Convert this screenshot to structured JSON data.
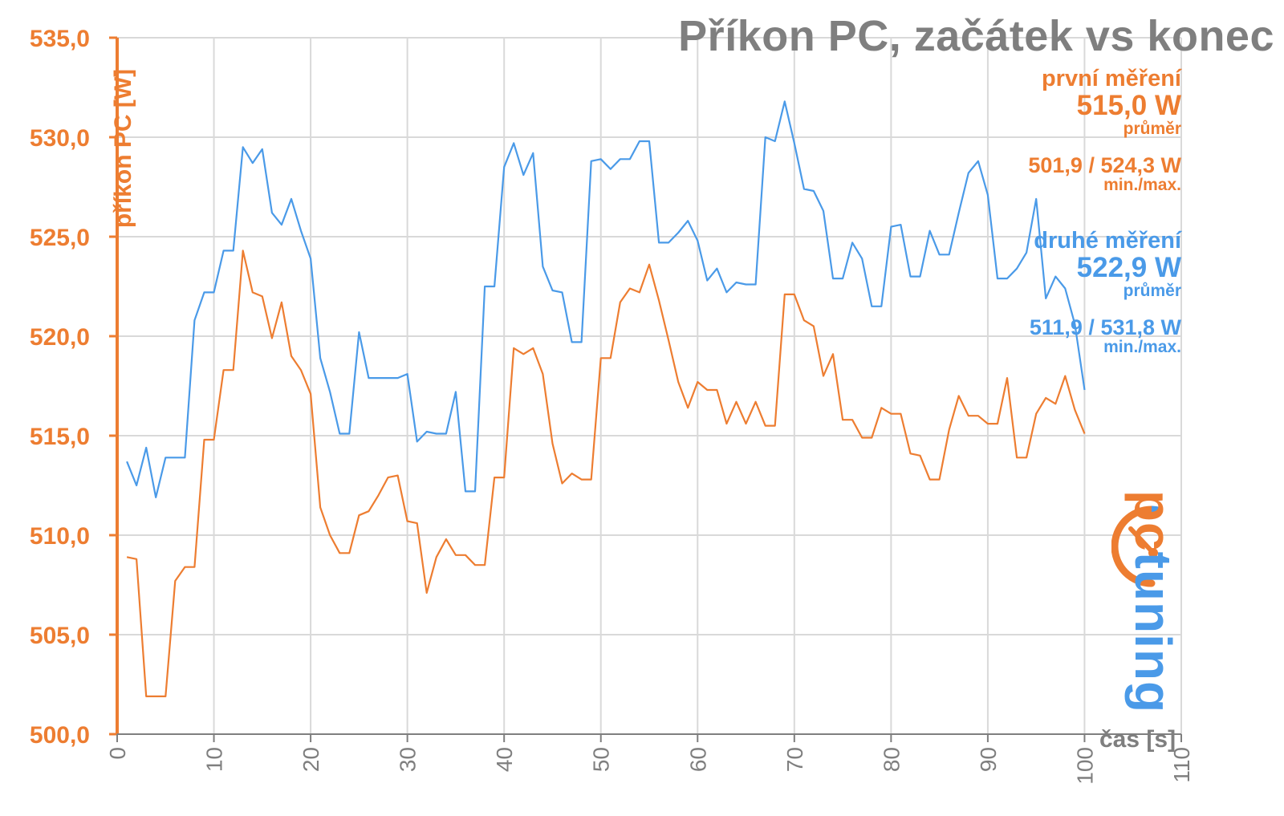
{
  "chart_data": {
    "type": "line",
    "title": "Příkon PC, začátek vs konec",
    "ylabel": "příkon PC [W]",
    "xlabel": "čas [s]",
    "xlim": [
      0,
      110
    ],
    "ylim": [
      500,
      535
    ],
    "x_ticks": [
      "0",
      "10",
      "20",
      "30",
      "40",
      "50",
      "60",
      "70",
      "80",
      "90",
      "100",
      "110"
    ],
    "y_ticks": [
      "500,0",
      "505,0",
      "510,0",
      "515,0",
      "520,0",
      "525,0",
      "530,0",
      "535,0"
    ],
    "grid": true,
    "colors": {
      "orange": "#ed7d31",
      "blue": "#4a9ae8",
      "grid": "#d9d9d9",
      "title": "#7f7f7f"
    },
    "legend": [
      {
        "name": "první měření",
        "avg": "515,0 W",
        "avg_label": "průměr",
        "minmax": "501,9 / 524,3 W",
        "minmax_label": "min./max.",
        "color": "#ed7d31"
      },
      {
        "name": "druhé měření",
        "avg": "522,9 W",
        "avg_label": "průměr",
        "minmax": "511,9 / 531,8 W",
        "minmax_label": "min./max.",
        "color": "#4a9ae8"
      }
    ],
    "series": [
      {
        "name": "první měření",
        "color": "#ed7d31",
        "values": [
          508.9,
          508.8,
          501.9,
          501.9,
          501.9,
          507.7,
          508.4,
          508.4,
          514.8,
          514.8,
          518.3,
          518.3,
          524.3,
          522.2,
          522.0,
          519.9,
          521.7,
          519.0,
          518.3,
          517.1,
          511.4,
          510.0,
          509.1,
          509.1,
          511.0,
          511.2,
          512.0,
          512.9,
          513.0,
          510.7,
          510.6,
          507.1,
          508.9,
          509.8,
          509.0,
          509.0,
          508.5,
          508.5,
          512.9,
          512.9,
          519.4,
          519.1,
          519.4,
          518.1,
          514.6,
          512.6,
          513.1,
          512.8,
          512.8,
          518.9,
          518.9,
          521.7,
          522.4,
          522.2,
          523.6,
          521.8,
          519.8,
          517.7,
          516.4,
          517.7,
          517.3,
          517.3,
          515.6,
          516.7,
          515.6,
          516.7,
          515.5,
          515.5,
          522.1,
          522.1,
          520.8,
          520.5,
          518.0,
          519.1,
          515.8,
          515.8,
          514.9,
          514.9,
          516.4,
          516.1,
          516.1,
          514.1,
          514.0,
          512.8,
          512.8,
          515.3,
          517.0,
          516.0,
          516.0,
          515.6,
          515.6,
          517.9,
          513.9,
          513.9,
          516.1,
          516.9,
          516.6,
          518.0,
          516.3,
          515.1
        ]
      },
      {
        "name": "druhé měření",
        "color": "#4a9ae8",
        "values": [
          513.7,
          512.5,
          514.4,
          511.9,
          513.9,
          513.9,
          513.9,
          520.8,
          522.2,
          522.2,
          524.3,
          524.3,
          529.5,
          528.7,
          529.4,
          526.2,
          525.6,
          526.9,
          525.3,
          523.9,
          518.9,
          517.2,
          515.1,
          515.1,
          520.2,
          517.9,
          517.9,
          517.9,
          517.9,
          518.1,
          514.7,
          515.2,
          515.1,
          515.1,
          517.2,
          512.2,
          512.2,
          522.5,
          522.5,
          528.5,
          529.7,
          528.1,
          529.2,
          523.5,
          522.3,
          522.2,
          519.7,
          519.7,
          528.8,
          528.9,
          528.4,
          528.9,
          528.9,
          529.8,
          529.8,
          524.7,
          524.7,
          525.2,
          525.8,
          524.8,
          522.8,
          523.4,
          522.2,
          522.7,
          522.6,
          522.6,
          530.0,
          529.8,
          531.8,
          529.7,
          527.4,
          527.3,
          526.3,
          522.9,
          522.9,
          524.7,
          523.9,
          521.5,
          521.5,
          525.5,
          525.6,
          523.0,
          523.0,
          525.3,
          524.1,
          524.1,
          526.2,
          528.2,
          528.8,
          527.1,
          522.9,
          522.9,
          523.4,
          524.2,
          526.9,
          521.9,
          523.0,
          522.4,
          520.6,
          517.3
        ]
      }
    ]
  },
  "logo": {
    "pc": "pc",
    "tuning": "tuning"
  }
}
